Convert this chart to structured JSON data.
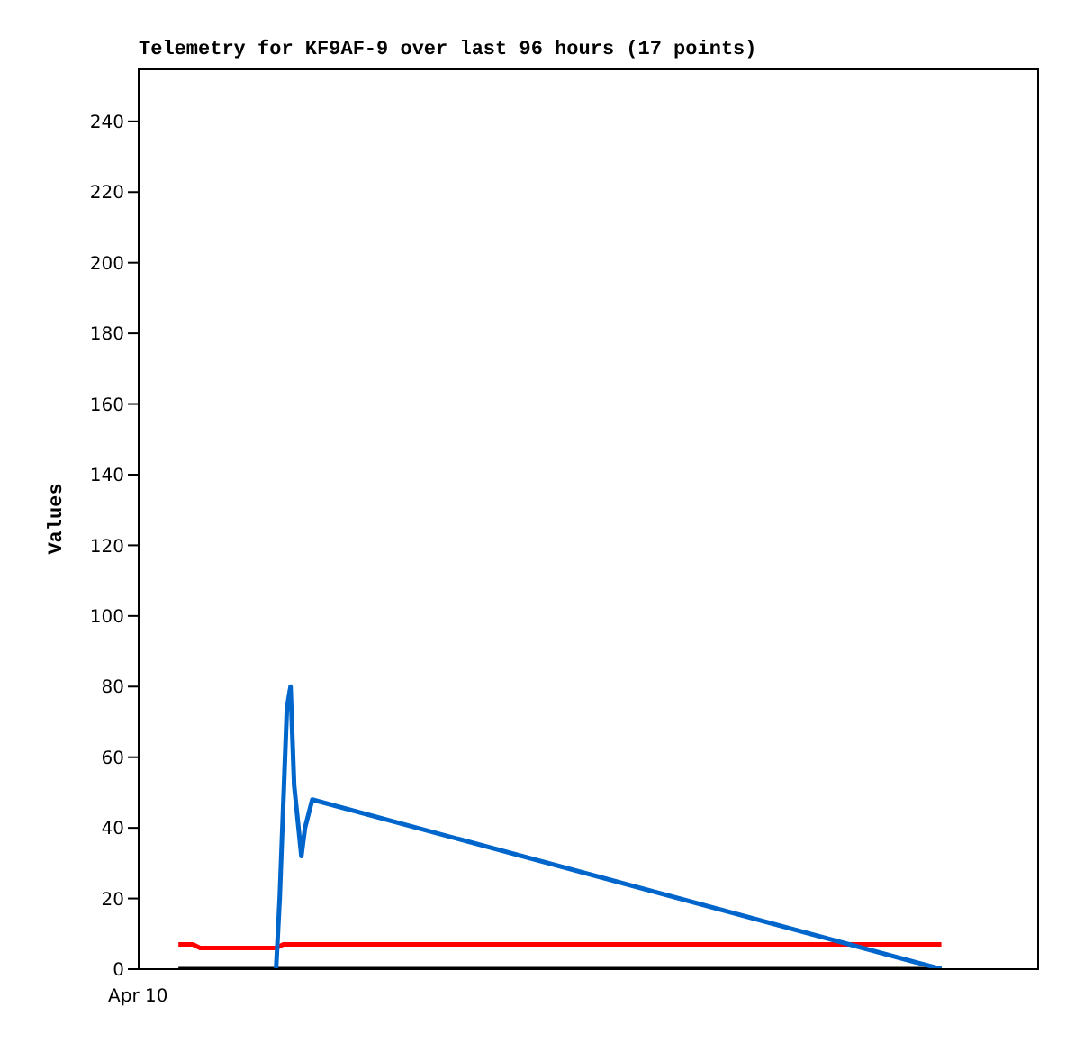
{
  "chart_data": {
    "type": "line",
    "title": "Telemetry for KF9AF-9 over last 96 hours (17 points)",
    "ylabel": "Values",
    "annotations": [
      "Apr 10"
    ],
    "categories": [
      null,
      null,
      null,
      null,
      null,
      null,
      null,
      null,
      null,
      null,
      null,
      null,
      null,
      null,
      null,
      null,
      null,
      null,
      null,
      null,
      null,
      null,
      null,
      null,
      null,
      null,
      null,
      null,
      null,
      null,
      null,
      null,
      null,
      null,
      null,
      null,
      null,
      null,
      null,
      null,
      null,
      null,
      null,
      null,
      null,
      null,
      null,
      null,
      null,
      null,
      null,
      null,
      null,
      null,
      null,
      null,
      null,
      null,
      null,
      null,
      null,
      null,
      null,
      null,
      null,
      null,
      null,
      null,
      null,
      null,
      null,
      null,
      null,
      null,
      null,
      null,
      null,
      null,
      null,
      null,
      null,
      null,
      null,
      null,
      null,
      null,
      null,
      null,
      null,
      null,
      null,
      null,
      null,
      null,
      null,
      null,
      null,
      null,
      null,
      null,
      null,
      null,
      null,
      null,
      null,
      null,
      null,
      null,
      null,
      null,
      null,
      null,
      null,
      null,
      null,
      null,
      null,
      null,
      null,
      null,
      null,
      null,
      null,
      null,
      null,
      null,
      null,
      null,
      null,
      null,
      null,
      null,
      null,
      null,
      null,
      null,
      null,
      null,
      null,
      null,
      null,
      null,
      null,
      null,
      null,
      null,
      null,
      null,
      null,
      null,
      null,
      null,
      null,
      null,
      null,
      null,
      null,
      null,
      null,
      null,
      null,
      null,
      null,
      null,
      null,
      null,
      null,
      null,
      null,
      null,
      null,
      null,
      null,
      null,
      null,
      null,
      null,
      null,
      null,
      null,
      null,
      null,
      null,
      null,
      null,
      null,
      null,
      null,
      null,
      null,
      null,
      null,
      null,
      null,
      null,
      null,
      null,
      null,
      null,
      null,
      null,
      null,
      null,
      null,
      null,
      null,
      null,
      null,
      null,
      null,
      null,
      null,
      null,
      null,
      null,
      null,
      null,
      null,
      null,
      null,
      null,
      null,
      null,
      null,
      null,
      null,
      null,
      null,
      null,
      null,
      null,
      null,
      null,
      null,
      null,
      null,
      null,
      null,
      null,
      null,
      null,
      null,
      null,
      null,
      null,
      null,
      null,
      null,
      null,
      null
    ],
    "ylim": [
      0,
      255
    ],
    "yticks": [
      0,
      20,
      40,
      60,
      80,
      100,
      120,
      140,
      160,
      180,
      200,
      220,
      240
    ],
    "marker": "none",
    "line_style": "solid",
    "series": [
      {
        "color": "#000000",
        "values": [
          null,
          null,
          null,
          null,
          null,
          null,
          null,
          null,
          null,
          null,
          null,
          0,
          null,
          null,
          null,
          null,
          null,
          null,
          null,
          null,
          null,
          null,
          null,
          null,
          null,
          null,
          null,
          null,
          null,
          null,
          null,
          null,
          null,
          null,
          null,
          null,
          null,
          null,
          null,
          null,
          null,
          null,
          null,
          null,
          null,
          null,
          null,
          null,
          null,
          null,
          null,
          null,
          null,
          null,
          null,
          null,
          null,
          null,
          null,
          null,
          null,
          null,
          null,
          null,
          null,
          null,
          null,
          null,
          null,
          null,
          null,
          null,
          null,
          null,
          null,
          null,
          null,
          null,
          null,
          null,
          null,
          null,
          null,
          null,
          null,
          null,
          null,
          null,
          null,
          null,
          null,
          null,
          null,
          null,
          null,
          null,
          null,
          null,
          null,
          null,
          null,
          null,
          null,
          null,
          null,
          null,
          null,
          null,
          null,
          null,
          null,
          null,
          null,
          null,
          null,
          null,
          null,
          null,
          null,
          null,
          null,
          null,
          null,
          null,
          null,
          null,
          null,
          null,
          null,
          null,
          null,
          null,
          null,
          null,
          null,
          null,
          null,
          null,
          null,
          null,
          null,
          null,
          null,
          null,
          null,
          null,
          null,
          null,
          null,
          null,
          null,
          null,
          null,
          null,
          null,
          null,
          null,
          null,
          null,
          null,
          null,
          null,
          null,
          null,
          null,
          null,
          null,
          null,
          null,
          null,
          null,
          null,
          null,
          null,
          null,
          null,
          null,
          null,
          null,
          null,
          null,
          null,
          null,
          null,
          null,
          null,
          null,
          null,
          null,
          null,
          null,
          null,
          null,
          null,
          null,
          null,
          null,
          null,
          null,
          null,
          null,
          null,
          null,
          null,
          null,
          null,
          null,
          null,
          null,
          null,
          null,
          null,
          null,
          null,
          null,
          null,
          null,
          null,
          null,
          null,
          null,
          null,
          0,
          null,
          null,
          null,
          null,
          null,
          null,
          null,
          null,
          null,
          null,
          null,
          null,
          null,
          null,
          null,
          null,
          null,
          null,
          null,
          null,
          null,
          null,
          null,
          null,
          null,
          null,
          null
        ]
      },
      {
        "color": "#ff0000",
        "values": [
          null,
          null,
          null,
          null,
          null,
          null,
          null,
          null,
          null,
          null,
          null,
          7,
          null,
          null,
          null,
          7,
          null,
          6,
          null,
          null,
          null,
          null,
          null,
          null,
          null,
          null,
          null,
          null,
          null,
          null,
          null,
          null,
          null,
          null,
          null,
          null,
          null,
          null,
          6,
          null,
          7,
          null,
          null,
          null,
          null,
          null,
          null,
          null,
          null,
          null,
          null,
          null,
          null,
          null,
          null,
          null,
          null,
          null,
          null,
          null,
          null,
          null,
          null,
          null,
          null,
          null,
          null,
          null,
          null,
          null,
          null,
          null,
          null,
          null,
          null,
          null,
          null,
          null,
          null,
          null,
          null,
          null,
          null,
          null,
          null,
          null,
          null,
          null,
          null,
          null,
          null,
          null,
          null,
          null,
          null,
          null,
          null,
          null,
          null,
          null,
          null,
          null,
          null,
          null,
          null,
          null,
          null,
          null,
          null,
          null,
          null,
          null,
          null,
          null,
          null,
          null,
          null,
          null,
          null,
          null,
          null,
          null,
          null,
          null,
          null,
          null,
          null,
          null,
          null,
          null,
          null,
          null,
          null,
          null,
          null,
          null,
          null,
          null,
          null,
          null,
          null,
          null,
          null,
          null,
          null,
          null,
          null,
          null,
          null,
          null,
          null,
          null,
          null,
          null,
          null,
          null,
          null,
          null,
          null,
          null,
          null,
          null,
          null,
          null,
          null,
          null,
          null,
          null,
          null,
          null,
          null,
          null,
          null,
          null,
          null,
          null,
          null,
          null,
          null,
          null,
          null,
          null,
          null,
          null,
          null,
          null,
          null,
          null,
          null,
          null,
          null,
          null,
          null,
          null,
          null,
          null,
          null,
          null,
          null,
          null,
          null,
          null,
          null,
          null,
          null,
          null,
          null,
          null,
          null,
          null,
          null,
          null,
          null,
          null,
          null,
          null,
          null,
          null,
          null,
          null,
          null,
          null,
          7,
          null,
          null,
          null,
          null,
          null,
          null,
          null,
          null,
          null,
          null,
          null,
          null,
          null,
          null,
          null,
          null,
          null,
          null,
          null,
          null,
          null,
          null,
          null,
          null,
          null,
          null,
          null
        ]
      },
      {
        "color": "#0066cc",
        "values": [
          null,
          null,
          null,
          null,
          null,
          null,
          null,
          null,
          null,
          null,
          null,
          null,
          null,
          null,
          null,
          null,
          null,
          null,
          null,
          null,
          null,
          null,
          null,
          null,
          null,
          null,
          null,
          null,
          null,
          null,
          null,
          null,
          null,
          null,
          null,
          null,
          null,
          null,
          0,
          20,
          47,
          74,
          80,
          52,
          null,
          32,
          40,
          null,
          48,
          null,
          null,
          null,
          null,
          null,
          null,
          null,
          null,
          null,
          null,
          null,
          null,
          null,
          null,
          null,
          null,
          null,
          null,
          null,
          null,
          null,
          null,
          null,
          null,
          null,
          null,
          null,
          null,
          null,
          null,
          null,
          null,
          null,
          null,
          null,
          null,
          null,
          null,
          null,
          null,
          null,
          null,
          null,
          null,
          null,
          null,
          null,
          null,
          null,
          null,
          null,
          null,
          null,
          null,
          null,
          null,
          null,
          null,
          null,
          null,
          null,
          null,
          null,
          null,
          null,
          null,
          null,
          null,
          null,
          null,
          null,
          null,
          null,
          null,
          null,
          null,
          null,
          null,
          null,
          null,
          null,
          null,
          null,
          null,
          null,
          null,
          null,
          null,
          null,
          null,
          null,
          null,
          null,
          null,
          null,
          null,
          null,
          null,
          null,
          null,
          null,
          null,
          null,
          null,
          null,
          null,
          null,
          null,
          null,
          null,
          null,
          null,
          null,
          null,
          null,
          null,
          null,
          null,
          null,
          null,
          null,
          null,
          null,
          null,
          null,
          null,
          null,
          null,
          null,
          null,
          null,
          null,
          null,
          null,
          null,
          null,
          null,
          null,
          null,
          null,
          null,
          null,
          null,
          null,
          null,
          null,
          null,
          null,
          null,
          null,
          null,
          null,
          null,
          null,
          null,
          null,
          null,
          null,
          null,
          null,
          null,
          null,
          null,
          null,
          null,
          null,
          null,
          null,
          null,
          null,
          null,
          null,
          null,
          0,
          null,
          null,
          null,
          null,
          null,
          null,
          null,
          null,
          null,
          null,
          null,
          null,
          null,
          null,
          null,
          null,
          null,
          null,
          null,
          null,
          null,
          null,
          null,
          null,
          null,
          null,
          null
        ]
      }
    ]
  }
}
